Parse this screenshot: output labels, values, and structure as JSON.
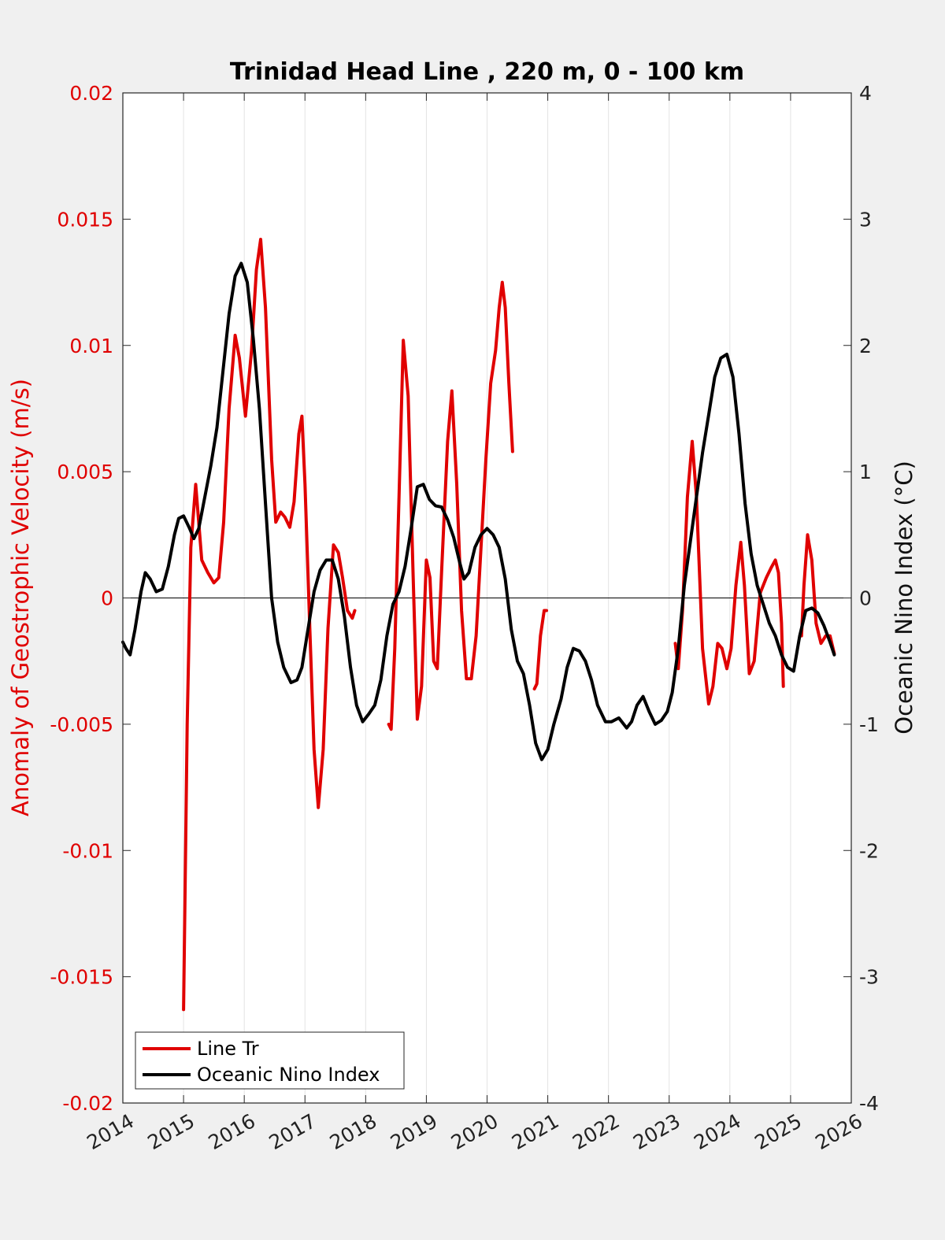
{
  "chart_data": {
    "type": "line",
    "title": "Trinidad Head Line , 220 m, 0 - 100 km",
    "xlabel": "",
    "ylabel_left": "Anomaly of Geostrophic Velocity (m/s)",
    "ylabel_right": "Oceanic Nino Index (°C)",
    "xlim": [
      2014,
      2026
    ],
    "ylim_left": [
      -0.02,
      0.02
    ],
    "ylim_right": [
      -4,
      4
    ],
    "x_ticks": [
      "2014",
      "2015",
      "2016",
      "2017",
      "2018",
      "2019",
      "2020",
      "2021",
      "2022",
      "2023",
      "2024",
      "2025",
      "2026"
    ],
    "y_ticks_left": [
      "0.02",
      "0.015",
      "0.01",
      "0.005",
      "0",
      "-0.005",
      "-0.01",
      "-0.015",
      "-0.02"
    ],
    "y_ticks_right": [
      "4",
      "3",
      "2",
      "1",
      "0",
      "-1",
      "-2",
      "-3",
      "-4"
    ],
    "legend_position": "bottom-left",
    "series": [
      {
        "name": "Line Tr",
        "axis": "left",
        "color": "#e00000",
        "segments": [
          [
            [
              2015.0,
              -0.0163
            ],
            [
              2015.06,
              -0.005
            ],
            [
              2015.12,
              0.002
            ],
            [
              2015.2,
              0.0045
            ],
            [
              2015.3,
              0.0015
            ],
            [
              2015.4,
              0.001
            ],
            [
              2015.5,
              0.0006
            ],
            [
              2015.58,
              0.0008
            ],
            [
              2015.66,
              0.003
            ],
            [
              2015.75,
              0.0075
            ],
            [
              2015.85,
              0.0104
            ],
            [
              2015.92,
              0.0095
            ],
            [
              2016.02,
              0.0072
            ],
            [
              2016.12,
              0.0098
            ],
            [
              2016.2,
              0.013
            ],
            [
              2016.27,
              0.0142
            ],
            [
              2016.35,
              0.0115
            ],
            [
              2016.45,
              0.0055
            ],
            [
              2016.52,
              0.003
            ],
            [
              2016.6,
              0.0034
            ],
            [
              2016.67,
              0.0032
            ],
            [
              2016.75,
              0.0028
            ],
            [
              2016.82,
              0.0038
            ],
            [
              2016.9,
              0.0065
            ],
            [
              2016.95,
              0.0072
            ],
            [
              2017.0,
              0.0045
            ],
            [
              2017.08,
              -0.0012
            ],
            [
              2017.15,
              -0.006
            ],
            [
              2017.22,
              -0.0083
            ],
            [
              2017.3,
              -0.006
            ],
            [
              2017.38,
              -0.0012
            ],
            [
              2017.47,
              0.0021
            ],
            [
              2017.55,
              0.0018
            ],
            [
              2017.62,
              0.0008
            ],
            [
              2017.7,
              -0.0005
            ],
            [
              2017.78,
              -0.0008
            ],
            [
              2017.82,
              -0.0005
            ]
          ],
          [
            [
              2018.38,
              -0.005
            ],
            [
              2018.42,
              -0.0052
            ],
            [
              2018.48,
              -0.002
            ],
            [
              2018.55,
              0.004
            ],
            [
              2018.62,
              0.0102
            ],
            [
              2018.7,
              0.008
            ],
            [
              2018.78,
              0.001
            ],
            [
              2018.85,
              -0.0048
            ],
            [
              2018.92,
              -0.0035
            ],
            [
              2019.0,
              0.0015
            ],
            [
              2019.06,
              0.0008
            ],
            [
              2019.12,
              -0.0025
            ],
            [
              2019.18,
              -0.0028
            ],
            [
              2019.25,
              0.001
            ],
            [
              2019.35,
              0.0062
            ],
            [
              2019.42,
              0.0082
            ],
            [
              2019.5,
              0.0045
            ],
            [
              2019.58,
              -0.0005
            ],
            [
              2019.66,
              -0.0032
            ],
            [
              2019.74,
              -0.0032
            ],
            [
              2019.82,
              -0.0015
            ],
            [
              2019.9,
              0.002
            ],
            [
              2019.98,
              0.0055
            ],
            [
              2020.06,
              0.0085
            ],
            [
              2020.14,
              0.0098
            ],
            [
              2020.2,
              0.0115
            ],
            [
              2020.25,
              0.0125
            ],
            [
              2020.3,
              0.0115
            ],
            [
              2020.36,
              0.0085
            ],
            [
              2020.42,
              0.0058
            ]
          ],
          [
            [
              2020.78,
              -0.0036
            ],
            [
              2020.82,
              -0.0034
            ],
            [
              2020.88,
              -0.0015
            ],
            [
              2020.94,
              -0.0005
            ],
            [
              2020.98,
              -0.0005
            ]
          ],
          [
            [
              2023.1,
              -0.0018
            ],
            [
              2023.15,
              -0.0028
            ],
            [
              2023.22,
              -0.0005
            ],
            [
              2023.3,
              0.004
            ],
            [
              2023.38,
              0.0062
            ],
            [
              2023.45,
              0.004
            ],
            [
              2023.55,
              -0.002
            ],
            [
              2023.65,
              -0.0042
            ],
            [
              2023.72,
              -0.0035
            ],
            [
              2023.8,
              -0.0018
            ],
            [
              2023.87,
              -0.002
            ],
            [
              2023.95,
              -0.0028
            ],
            [
              2024.02,
              -0.002
            ],
            [
              2024.1,
              0.0005
            ],
            [
              2024.18,
              0.0022
            ],
            [
              2024.24,
              0.0005
            ],
            [
              2024.32,
              -0.003
            ],
            [
              2024.4,
              -0.0025
            ],
            [
              2024.5,
              0.0002
            ],
            [
              2024.6,
              0.0008
            ],
            [
              2024.68,
              0.0012
            ],
            [
              2024.75,
              0.0015
            ],
            [
              2024.8,
              0.001
            ],
            [
              2024.85,
              -0.001
            ],
            [
              2024.88,
              -0.0035
            ]
          ],
          [
            [
              2025.18,
              -0.0015
            ],
            [
              2025.22,
              0.0005
            ],
            [
              2025.28,
              0.0025
            ],
            [
              2025.35,
              0.0015
            ],
            [
              2025.42,
              -0.001
            ],
            [
              2025.5,
              -0.0018
            ],
            [
              2025.58,
              -0.0015
            ],
            [
              2025.65,
              -0.0015
            ],
            [
              2025.72,
              -0.0022
            ]
          ]
        ]
      },
      {
        "name": "Oceanic Nino Index",
        "axis": "right",
        "color": "#000000",
        "segments": [
          [
            [
              2014.0,
              -0.35
            ],
            [
              2014.05,
              -0.4
            ],
            [
              2014.12,
              -0.45
            ],
            [
              2014.2,
              -0.25
            ],
            [
              2014.3,
              0.05
            ],
            [
              2014.37,
              0.2
            ],
            [
              2014.45,
              0.15
            ],
            [
              2014.55,
              0.05
            ],
            [
              2014.65,
              0.07
            ],
            [
              2014.75,
              0.25
            ],
            [
              2014.85,
              0.5
            ],
            [
              2014.92,
              0.63
            ],
            [
              2015.0,
              0.65
            ],
            [
              2015.1,
              0.55
            ],
            [
              2015.17,
              0.47
            ],
            [
              2015.25,
              0.55
            ],
            [
              2015.35,
              0.8
            ],
            [
              2015.45,
              1.05
            ],
            [
              2015.55,
              1.35
            ],
            [
              2015.65,
              1.8
            ],
            [
              2015.75,
              2.25
            ],
            [
              2015.85,
              2.55
            ],
            [
              2015.95,
              2.65
            ],
            [
              2016.05,
              2.5
            ],
            [
              2016.15,
              2.05
            ],
            [
              2016.25,
              1.5
            ],
            [
              2016.35,
              0.75
            ],
            [
              2016.45,
              0.0
            ],
            [
              2016.55,
              -0.35
            ],
            [
              2016.65,
              -0.55
            ],
            [
              2016.77,
              -0.67
            ],
            [
              2016.87,
              -0.65
            ],
            [
              2016.95,
              -0.55
            ],
            [
              2017.05,
              -0.25
            ],
            [
              2017.15,
              0.05
            ],
            [
              2017.25,
              0.22
            ],
            [
              2017.35,
              0.3
            ],
            [
              2017.45,
              0.3
            ],
            [
              2017.55,
              0.15
            ],
            [
              2017.65,
              -0.15
            ],
            [
              2017.75,
              -0.55
            ],
            [
              2017.85,
              -0.85
            ],
            [
              2017.95,
              -0.98
            ],
            [
              2018.05,
              -0.92
            ],
            [
              2018.15,
              -0.85
            ],
            [
              2018.25,
              -0.65
            ],
            [
              2018.35,
              -0.3
            ],
            [
              2018.45,
              -0.05
            ],
            [
              2018.55,
              0.05
            ],
            [
              2018.65,
              0.25
            ],
            [
              2018.75,
              0.55
            ],
            [
              2018.85,
              0.88
            ],
            [
              2018.95,
              0.9
            ],
            [
              2019.05,
              0.78
            ],
            [
              2019.15,
              0.73
            ],
            [
              2019.25,
              0.72
            ],
            [
              2019.35,
              0.62
            ],
            [
              2019.45,
              0.48
            ],
            [
              2019.55,
              0.28
            ],
            [
              2019.62,
              0.15
            ],
            [
              2019.7,
              0.2
            ],
            [
              2019.8,
              0.4
            ],
            [
              2019.9,
              0.5
            ],
            [
              2020.0,
              0.55
            ],
            [
              2020.1,
              0.5
            ],
            [
              2020.2,
              0.4
            ],
            [
              2020.3,
              0.15
            ],
            [
              2020.4,
              -0.25
            ],
            [
              2020.5,
              -0.5
            ],
            [
              2020.6,
              -0.6
            ],
            [
              2020.7,
              -0.85
            ],
            [
              2020.8,
              -1.15
            ],
            [
              2020.9,
              -1.28
            ],
            [
              2021.0,
              -1.2
            ],
            [
              2021.1,
              -1.0
            ],
            [
              2021.22,
              -0.8
            ],
            [
              2021.32,
              -0.55
            ],
            [
              2021.42,
              -0.4
            ],
            [
              2021.52,
              -0.42
            ],
            [
              2021.62,
              -0.5
            ],
            [
              2021.72,
              -0.65
            ],
            [
              2021.82,
              -0.85
            ],
            [
              2021.95,
              -0.98
            ],
            [
              2022.05,
              -0.98
            ],
            [
              2022.17,
              -0.95
            ],
            [
              2022.3,
              -1.03
            ],
            [
              2022.38,
              -0.98
            ],
            [
              2022.47,
              -0.85
            ],
            [
              2022.57,
              -0.78
            ],
            [
              2022.67,
              -0.9
            ],
            [
              2022.77,
              -1.0
            ],
            [
              2022.87,
              -0.97
            ],
            [
              2022.97,
              -0.9
            ],
            [
              2023.05,
              -0.75
            ],
            [
              2023.15,
              -0.4
            ],
            [
              2023.25,
              0.1
            ],
            [
              2023.35,
              0.45
            ],
            [
              2023.45,
              0.8
            ],
            [
              2023.55,
              1.15
            ],
            [
              2023.65,
              1.45
            ],
            [
              2023.75,
              1.75
            ],
            [
              2023.85,
              1.9
            ],
            [
              2023.95,
              1.93
            ],
            [
              2024.05,
              1.75
            ],
            [
              2024.15,
              1.3
            ],
            [
              2024.25,
              0.75
            ],
            [
              2024.35,
              0.35
            ],
            [
              2024.45,
              0.1
            ],
            [
              2024.55,
              -0.05
            ],
            [
              2024.65,
              -0.2
            ],
            [
              2024.75,
              -0.3
            ],
            [
              2024.85,
              -0.45
            ],
            [
              2024.95,
              -0.55
            ],
            [
              2025.05,
              -0.58
            ],
            [
              2025.15,
              -0.3
            ],
            [
              2025.25,
              -0.1
            ],
            [
              2025.35,
              -0.08
            ],
            [
              2025.45,
              -0.12
            ],
            [
              2025.55,
              -0.22
            ],
            [
              2025.65,
              -0.35
            ],
            [
              2025.72,
              -0.45
            ]
          ]
        ]
      }
    ]
  }
}
